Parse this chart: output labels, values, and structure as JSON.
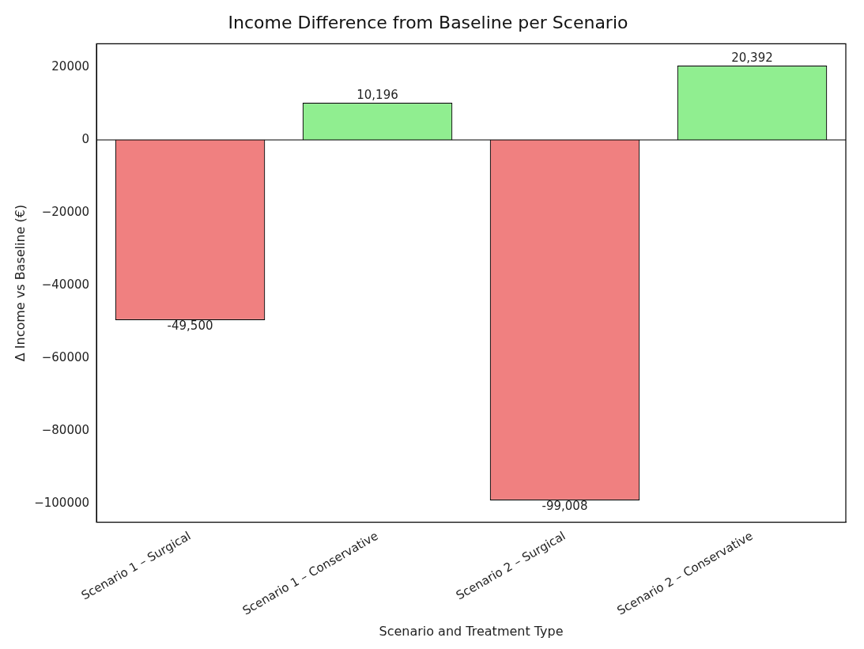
{
  "chart_data": {
    "type": "bar",
    "title": "Income Difference from Baseline per Scenario",
    "xlabel": "Scenario and Treatment Type",
    "ylabel": "Δ Income vs Baseline (€)",
    "categories": [
      "Scenario 1 – Surgical",
      "Scenario 1 – Conservative",
      "Scenario 2 – Surgical",
      "Scenario 2 – Conservative"
    ],
    "values": [
      -49500,
      10196,
      -99008,
      20392
    ],
    "colors": [
      "#f08080",
      "#90ee90",
      "#f08080",
      "#90ee90"
    ],
    "value_labels": [
      "-49,500",
      "10,196",
      "-99,008",
      "20,392"
    ],
    "ylim": [
      -105000,
      26400
    ],
    "yticks": [
      {
        "value": -100000,
        "label": "−100000"
      },
      {
        "value": -80000,
        "label": "−80000"
      },
      {
        "value": -60000,
        "label": "−60000"
      },
      {
        "value": -40000,
        "label": "−40000"
      },
      {
        "value": -20000,
        "label": "−20000"
      },
      0,
      20000
    ],
    "ref_lines": [
      {
        "axis": "y",
        "value": 0,
        "color": "#000000"
      }
    ],
    "grid": false,
    "legend": false
  }
}
